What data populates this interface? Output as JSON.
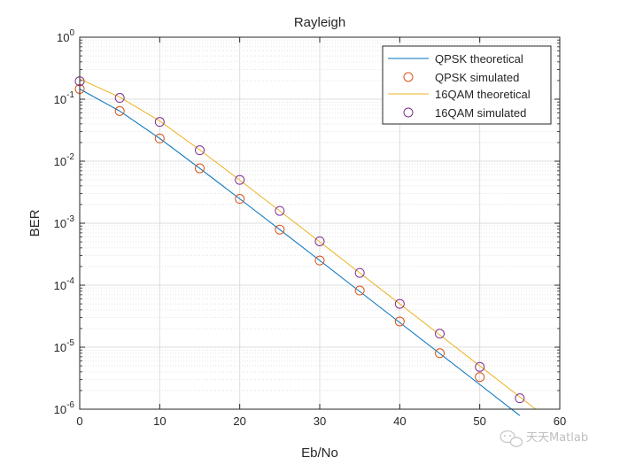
{
  "watermark": {
    "text": "天天Matlab",
    "icon": "wechat-icon"
  },
  "colors": {
    "qpsk_line": "#0072BD",
    "qpsk_marker": "#D95319",
    "qam_line": "#EDB120",
    "qam_marker": "#7E2F8E",
    "grid": "#dcdcdc",
    "axis": "#262626"
  },
  "chart_data": {
    "type": "line",
    "title": "Rayleigh",
    "xlabel": "Eb/No",
    "ylabel": "BER",
    "xlim": [
      0,
      60
    ],
    "ylim": [
      1e-06,
      1
    ],
    "yscale": "log",
    "grid": "on",
    "minor_grid": "on",
    "legend_location": "top-right",
    "x_ticks": [
      0,
      10,
      20,
      30,
      40,
      50,
      60
    ],
    "x_tick_labels": [
      "0",
      "10",
      "20",
      "30",
      "40",
      "50",
      "60"
    ],
    "y_ticks": [
      {
        "value": 1,
        "base": "10",
        "exp": "0"
      },
      {
        "value": 0.1,
        "base": "10",
        "exp": "-1"
      },
      {
        "value": 0.01,
        "base": "10",
        "exp": "-2"
      },
      {
        "value": 0.001,
        "base": "10",
        "exp": "-3"
      },
      {
        "value": 0.0001,
        "base": "10",
        "exp": "-4"
      },
      {
        "value": 1e-05,
        "base": "10",
        "exp": "-5"
      },
      {
        "value": 1e-06,
        "base": "10",
        "exp": "-6"
      }
    ],
    "series": [
      {
        "name": "QPSK theoretical",
        "style": "line",
        "x": [
          0,
          5,
          10,
          15,
          20,
          25,
          30,
          35,
          40,
          45,
          50,
          55
        ],
        "y": [
          0.146,
          0.0644,
          0.0233,
          0.00767,
          0.00247,
          0.000789,
          0.00025,
          7.92e-05,
          2.5e-05,
          7.91e-06,
          2.5e-06,
          7.9e-07
        ]
      },
      {
        "name": "QPSK simulated",
        "style": "marker",
        "x": [
          0,
          5,
          10,
          15,
          20,
          25,
          30,
          35,
          40,
          45,
          50
        ],
        "y": [
          0.146,
          0.0644,
          0.0233,
          0.00767,
          0.00247,
          0.000789,
          0.00025,
          8.2e-05,
          2.6e-05,
          8e-06,
          3.3e-06
        ]
      },
      {
        "name": "16QAM theoretical",
        "style": "line",
        "x": [
          0,
          5,
          10,
          15,
          20,
          25,
          30,
          35,
          40,
          45,
          50,
          55,
          57
        ],
        "y": [
          0.212,
          0.108,
          0.0446,
          0.0152,
          0.00495,
          0.00158,
          0.000501,
          0.000158,
          5e-05,
          1.58e-05,
          5e-06,
          1.58e-06,
          1e-06
        ]
      },
      {
        "name": "16QAM simulated",
        "style": "marker",
        "x": [
          0,
          5,
          10,
          15,
          20,
          25,
          30,
          35,
          40,
          45,
          50,
          55
        ],
        "y": [
          0.195,
          0.105,
          0.043,
          0.015,
          0.005,
          0.00158,
          0.00051,
          0.000158,
          5e-05,
          1.65e-05,
          4.8e-06,
          1.5e-06
        ]
      }
    ]
  }
}
